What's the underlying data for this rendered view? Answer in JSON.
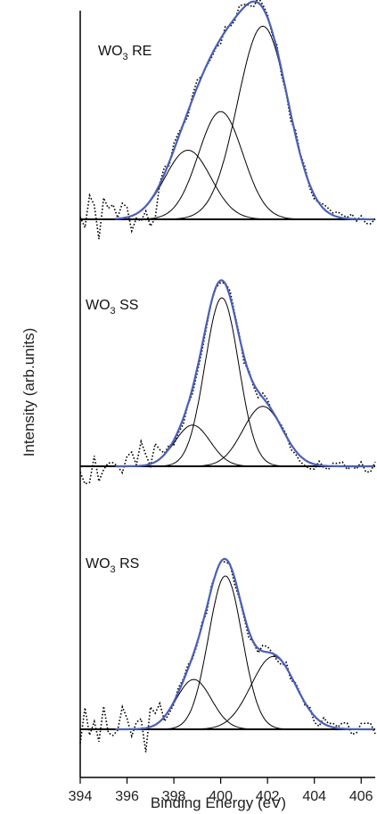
{
  "chart_data": {
    "type": "line",
    "xlabel": "Binding Energy (eV)",
    "ylabel": "Intensity (arb.units)",
    "xlim": [
      394,
      406.6
    ],
    "x_ticks": [
      394,
      396,
      398,
      400,
      402,
      404,
      406
    ],
    "x_tick_labels": [
      "394",
      "396",
      "398",
      "400",
      "402",
      "404",
      "406"
    ],
    "legend": "none",
    "grid": false,
    "colors": {
      "envelope": "#4a5fb5",
      "component": "#000000",
      "raw": "#000000"
    },
    "panels": [
      {
        "label_main": "WO",
        "label_sub": "3",
        "label_tail": " RE",
        "ylim": [
          0,
          1.0
        ],
        "components": [
          {
            "center": 398.6,
            "height": 0.34,
            "sigma": 0.98
          },
          {
            "center": 400.0,
            "height": 0.53,
            "sigma": 0.95
          },
          {
            "center": 401.8,
            "height": 0.95,
            "sigma": 1.08
          }
        ],
        "raw_noise_seed": 1
      },
      {
        "label_main": "WO",
        "label_sub": "3",
        "label_tail": " SS",
        "ylim": [
          0,
          1.0
        ],
        "components": [
          {
            "center": 398.8,
            "height": 0.22,
            "sigma": 0.75
          },
          {
            "center": 400.05,
            "height": 0.9,
            "sigma": 0.72
          },
          {
            "center": 401.8,
            "height": 0.32,
            "sigma": 0.85
          }
        ],
        "raw_noise_seed": 2
      },
      {
        "label_main": "WO",
        "label_sub": "3",
        "label_tail": " RS",
        "ylim": [
          0,
          1.0
        ],
        "components": [
          {
            "center": 398.85,
            "height": 0.26,
            "sigma": 0.75
          },
          {
            "center": 400.2,
            "height": 0.8,
            "sigma": 0.72
          },
          {
            "center": 402.25,
            "height": 0.38,
            "sigma": 0.95
          }
        ],
        "raw_noise_seed": 3
      }
    ]
  }
}
